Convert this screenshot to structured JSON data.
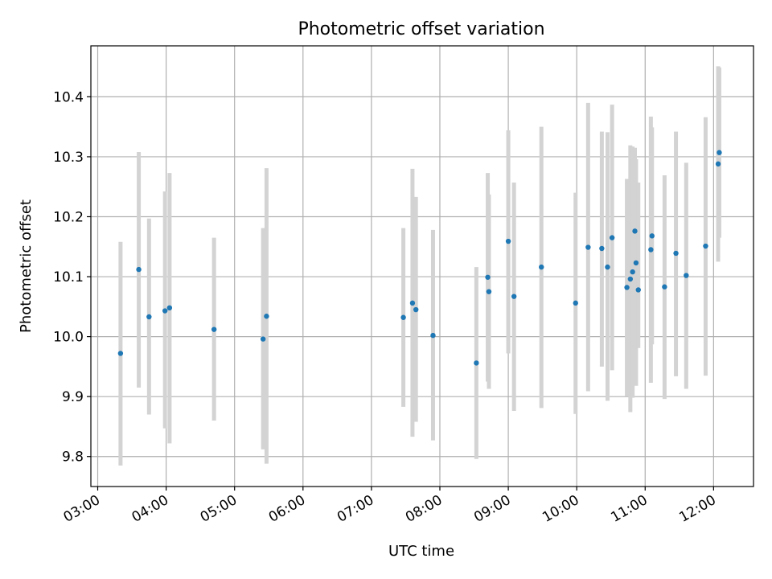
{
  "chart_data": {
    "type": "scatter",
    "title": "Photometric offset variation",
    "xlabel": "UTC time",
    "ylabel": "Photometric offset",
    "grid": true,
    "xlim": [
      "02:54",
      "12:35"
    ],
    "ylim": [
      9.75,
      10.485
    ],
    "x_ticks": [
      "03:00",
      "04:00",
      "05:00",
      "06:00",
      "07:00",
      "08:00",
      "09:00",
      "10:00",
      "11:00",
      "12:00"
    ],
    "y_ticks": [
      "9.8",
      "9.9",
      "10.0",
      "10.1",
      "10.2",
      "10.3",
      "10.4"
    ],
    "point_color": "#1f77b4",
    "errorbar_color": "#d3d3d3",
    "points": [
      {
        "time": "03:20",
        "y": 9.972,
        "lo": 9.785,
        "hi": 10.158
      },
      {
        "time": "03:36",
        "y": 10.112,
        "lo": 9.915,
        "hi": 10.308
      },
      {
        "time": "03:45",
        "y": 10.033,
        "lo": 9.87,
        "hi": 10.197
      },
      {
        "time": "03:59",
        "y": 10.043,
        "lo": 9.847,
        "hi": 10.242
      },
      {
        "time": "04:03",
        "y": 10.048,
        "lo": 9.822,
        "hi": 10.273
      },
      {
        "time": "04:42",
        "y": 10.012,
        "lo": 9.86,
        "hi": 10.165
      },
      {
        "time": "05:25",
        "y": 9.996,
        "lo": 9.812,
        "hi": 10.181
      },
      {
        "time": "05:28",
        "y": 10.034,
        "lo": 9.788,
        "hi": 10.281
      },
      {
        "time": "07:28",
        "y": 10.032,
        "lo": 9.883,
        "hi": 10.181
      },
      {
        "time": "07:36",
        "y": 10.056,
        "lo": 9.833,
        "hi": 10.28
      },
      {
        "time": "07:39",
        "y": 10.045,
        "lo": 9.858,
        "hi": 10.233
      },
      {
        "time": "07:54",
        "y": 10.002,
        "lo": 9.827,
        "hi": 10.178
      },
      {
        "time": "08:32",
        "y": 9.956,
        "lo": 9.796,
        "hi": 10.116
      },
      {
        "time": "08:42",
        "y": 10.099,
        "lo": 9.925,
        "hi": 10.273
      },
      {
        "time": "08:43",
        "y": 10.075,
        "lo": 9.913,
        "hi": 10.237
      },
      {
        "time": "09:00",
        "y": 10.159,
        "lo": 9.972,
        "hi": 10.344
      },
      {
        "time": "09:05",
        "y": 10.067,
        "lo": 9.876,
        "hi": 10.257
      },
      {
        "time": "09:29",
        "y": 10.116,
        "lo": 9.881,
        "hi": 10.35
      },
      {
        "time": "09:59",
        "y": 10.056,
        "lo": 9.871,
        "hi": 10.24
      },
      {
        "time": "10:10",
        "y": 10.149,
        "lo": 9.909,
        "hi": 10.39
      },
      {
        "time": "10:22",
        "y": 10.147,
        "lo": 9.95,
        "hi": 10.342
      },
      {
        "time": "10:27",
        "y": 10.116,
        "lo": 9.893,
        "hi": 10.341
      },
      {
        "time": "10:31",
        "y": 10.165,
        "lo": 9.944,
        "hi": 10.387
      },
      {
        "time": "10:44",
        "y": 10.082,
        "lo": 9.901,
        "hi": 10.263
      },
      {
        "time": "10:47",
        "y": 10.096,
        "lo": 9.874,
        "hi": 10.319
      },
      {
        "time": "10:49",
        "y": 10.108,
        "lo": 9.898,
        "hi": 10.317
      },
      {
        "time": "10:51",
        "y": 10.176,
        "lo": 9.935,
        "hi": 10.315
      },
      {
        "time": "10:52",
        "y": 10.123,
        "lo": 9.918,
        "hi": 10.296
      },
      {
        "time": "10:54",
        "y": 10.078,
        "lo": 9.981,
        "hi": 10.257
      },
      {
        "time": "11:05",
        "y": 10.145,
        "lo": 9.923,
        "hi": 10.367
      },
      {
        "time": "11:06",
        "y": 10.168,
        "lo": 9.987,
        "hi": 10.349
      },
      {
        "time": "11:17",
        "y": 10.083,
        "lo": 9.896,
        "hi": 10.269
      },
      {
        "time": "11:27",
        "y": 10.139,
        "lo": 9.934,
        "hi": 10.342
      },
      {
        "time": "11:36",
        "y": 10.102,
        "lo": 9.913,
        "hi": 10.29
      },
      {
        "time": "11:53",
        "y": 10.151,
        "lo": 9.935,
        "hi": 10.366
      },
      {
        "time": "12:04",
        "y": 10.288,
        "lo": 10.125,
        "hi": 10.451
      },
      {
        "time": "12:05",
        "y": 10.307,
        "lo": 10.165,
        "hi": 10.449
      }
    ]
  }
}
